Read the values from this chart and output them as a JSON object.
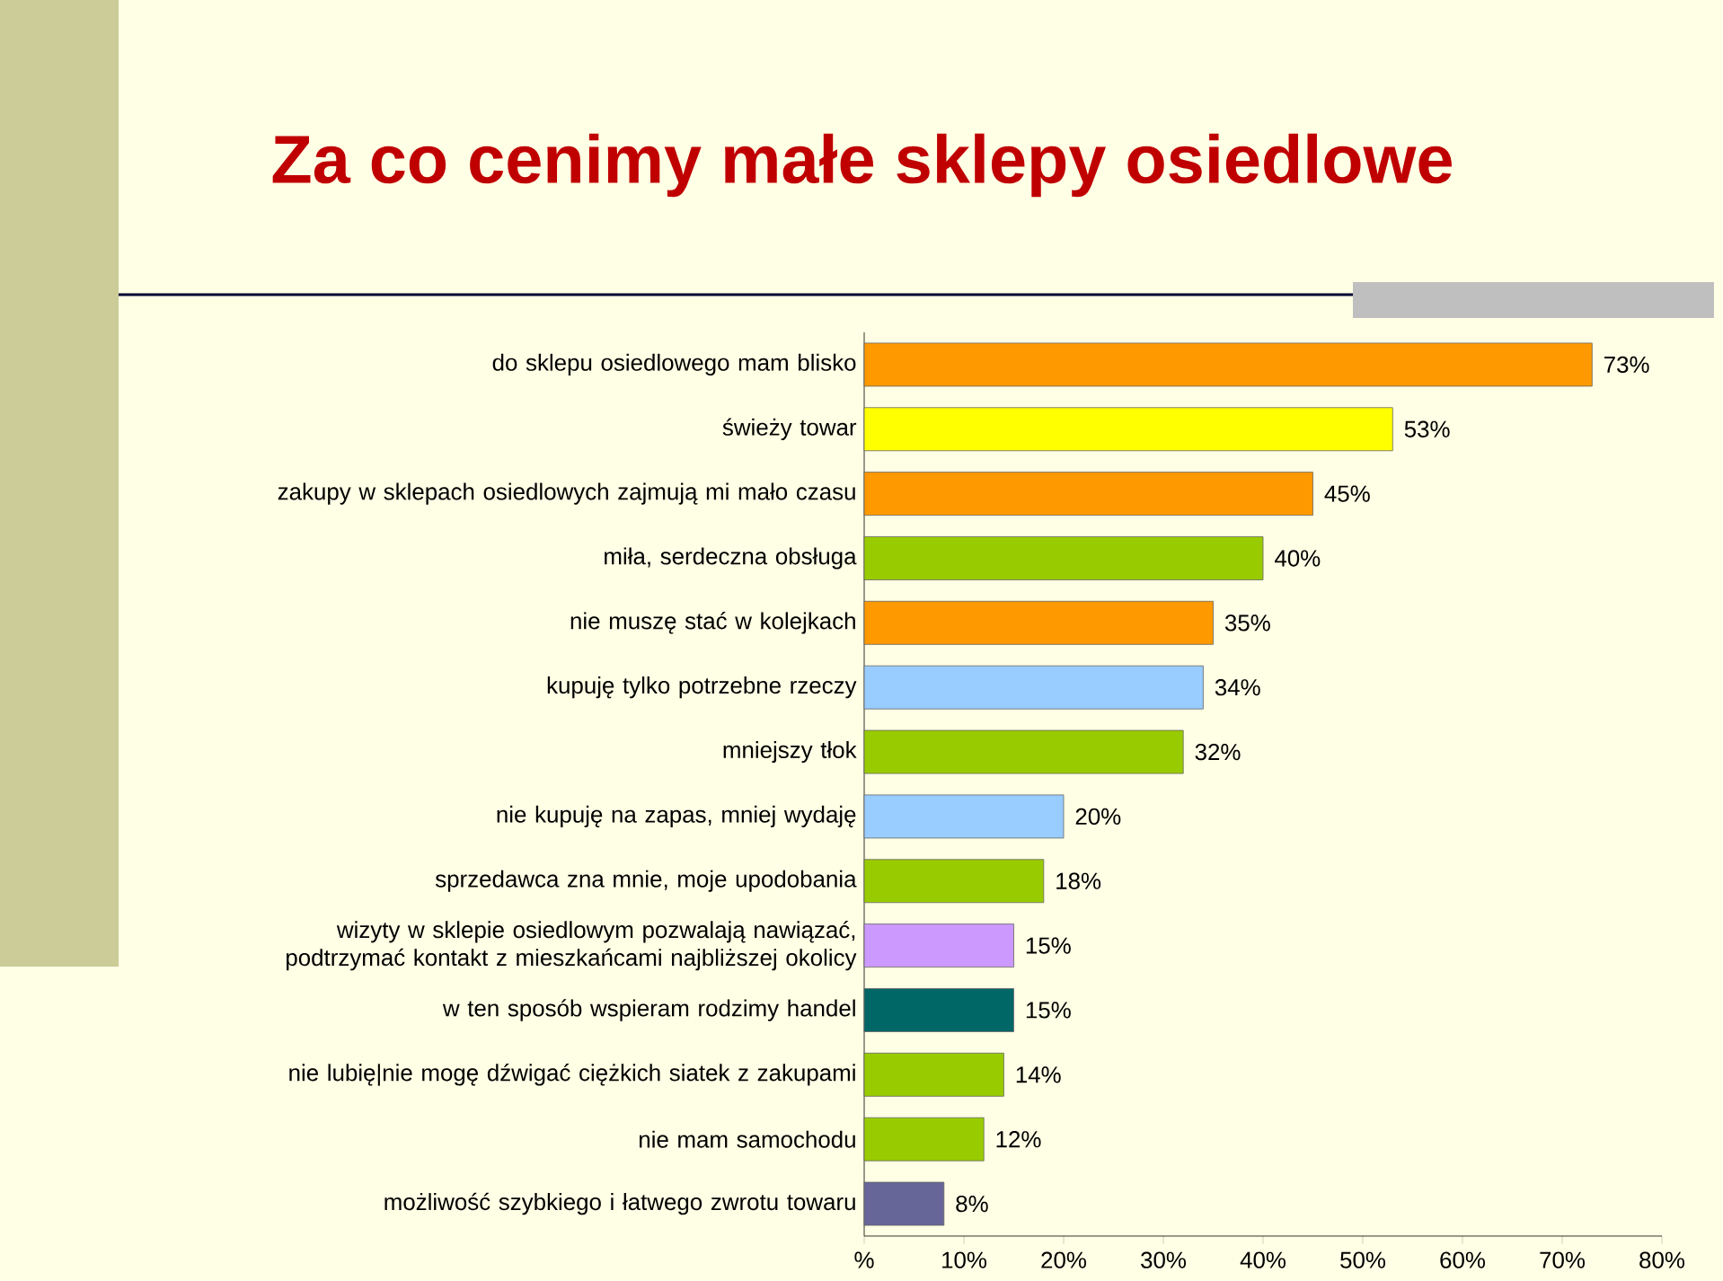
{
  "chart_data": {
    "type": "bar",
    "orientation": "horizontal",
    "title": "Za co cenimy małe sklepy osiedlowe",
    "categories": [
      "do sklepu osiedlowego mam blisko",
      "świeży towar",
      "zakupy w sklepach osiedlowych zajmują mi mało czasu",
      "miła, serdeczna obsługa",
      "nie muszę stać w kolejkach",
      "kupuję tylko potrzebne rzeczy",
      "mniejszy tłok",
      "nie kupuję na zapas, mniej wydaję",
      "sprzedawca zna mnie, moje upodobania",
      "wizyty w sklepie osiedlowym pozwalają nawiązać, podtrzymać kontakt z mieszkańcami najbliższej okolicy",
      "w ten sposób wspieram rodzimy handel",
      "nie lubię|nie mogę dźwigać ciężkich siatek z zakupami",
      "nie mam samochodu",
      "możliwość szybkiego i łatwego zwrotu towaru"
    ],
    "values": [
      73,
      53,
      45,
      40,
      35,
      34,
      32,
      20,
      18,
      15,
      15,
      14,
      12,
      8
    ],
    "value_labels": [
      "73%",
      "53%",
      "45%",
      "40%",
      "35%",
      "34%",
      "32%",
      "20%",
      "18%",
      "15%",
      "15%",
      "14%",
      "12%",
      "8%"
    ],
    "colors": [
      "#ff9900",
      "#ffff00",
      "#ff9900",
      "#99cc00",
      "#ff9900",
      "#99ccff",
      "#99cc00",
      "#99ccff",
      "#99cc00",
      "#cc99ff",
      "#006666",
      "#99cc00",
      "#99cc00",
      "#666699"
    ],
    "xlim": [
      0,
      80
    ],
    "xticks": [
      {
        "value": 0,
        "label": "%"
      },
      {
        "value": 10,
        "label": "10%"
      },
      {
        "value": 20,
        "label": "20%"
      },
      {
        "value": 30,
        "label": "30%"
      },
      {
        "value": 40,
        "label": "40%"
      },
      {
        "value": 50,
        "label": "50%"
      },
      {
        "value": 60,
        "label": "60%"
      },
      {
        "value": 70,
        "label": "70%"
      },
      {
        "value": 80,
        "label": "80%"
      }
    ],
    "grid": false
  }
}
